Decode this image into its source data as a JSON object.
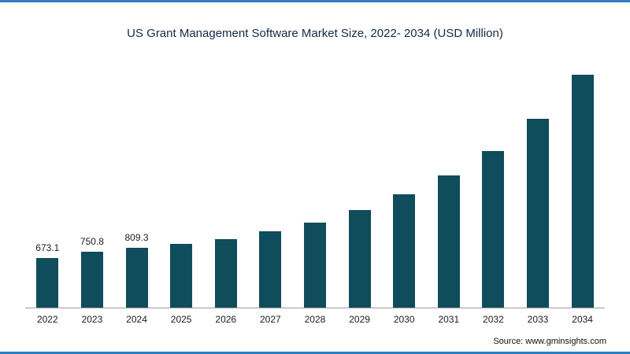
{
  "page": {
    "accent_color": "#2b7ec2",
    "background": "#ffffff"
  },
  "chart_data": {
    "type": "bar",
    "title": "US Grant Management Software Market Size, 2022- 2034 (USD Million)",
    "categories": [
      "2022",
      "2023",
      "2024",
      "2025",
      "2026",
      "2027",
      "2028",
      "2029",
      "2030",
      "2031",
      "2032",
      "2033",
      "2034"
    ],
    "values": [
      673.1,
      750.8,
      809.3,
      860,
      930,
      1030,
      1150,
      1320,
      1530,
      1790,
      2120,
      2560,
      3150
    ],
    "value_labels": [
      "673.1",
      "750.8",
      "809.3",
      "",
      "",
      "",
      "",
      "",
      "",
      "",
      "",
      "",
      ""
    ],
    "bar_color": "#0f4c5c",
    "xlabel": "",
    "ylabel": "",
    "ylim": [
      0,
      3300
    ],
    "grid": false,
    "legend": "none",
    "source": "Source: www.gminsights.com"
  }
}
